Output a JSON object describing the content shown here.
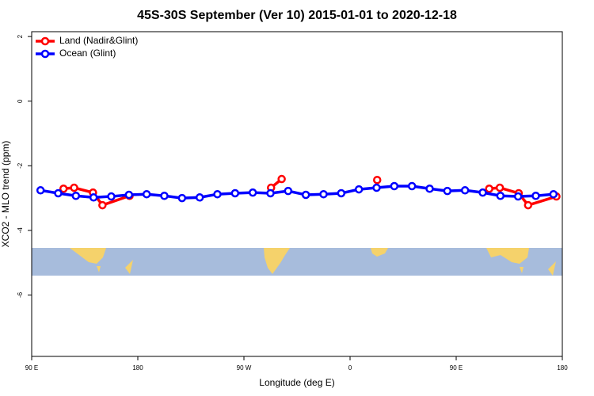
{
  "chart_data": {
    "type": "line",
    "title": "45S-30S September (Ver 10)   2015-01-01 to 2020-12-18",
    "xlabel": "Longitude (deg E)",
    "ylabel": "XCO2 - MLO trend (ppm)",
    "xlim": [
      90,
      540
    ],
    "ylim": [
      -7.9,
      2.15
    ],
    "xticks": [
      {
        "value": 90,
        "label": "90 E"
      },
      {
        "value": 180,
        "label": "180"
      },
      {
        "value": 270,
        "label": "90 W"
      },
      {
        "value": 360,
        "label": "0"
      },
      {
        "value": 450,
        "label": "90 E"
      },
      {
        "value": 540,
        "label": "180"
      }
    ],
    "yticks": [
      2,
      0,
      -2,
      -4,
      -6
    ],
    "grid": false,
    "legend": "top-left",
    "series": [
      {
        "name": "Land (Nadir&Glint)",
        "color": "#ff0000",
        "x": [
          117,
          126,
          142,
          150,
          173,
          null,
          293,
          302,
          null,
          383,
          null,
          478,
          487,
          503,
          511,
          535
        ],
        "values": [
          -2.71,
          -2.68,
          -2.83,
          -3.22,
          -2.93,
          null,
          -2.68,
          -2.41,
          null,
          -2.44,
          null,
          -2.71,
          -2.68,
          -2.85,
          -3.22,
          -2.95
        ]
      },
      {
        "name": "Ocean (Glint)",
        "color": "#0000ff",
        "x": [
          97.5,
          112.5,
          127.5,
          142.5,
          157.5,
          172.5,
          187.5,
          202.5,
          217.5,
          232.5,
          247.5,
          262.5,
          277.5,
          292.5,
          307.5,
          322.5,
          337.5,
          352.5,
          367.5,
          382.5,
          397.5,
          412.5,
          427.5,
          442.5,
          457.5,
          472.5,
          487.5,
          502.5,
          517.5,
          532.5
        ],
        "values": [
          -2.76,
          -2.85,
          -2.93,
          -2.98,
          -2.95,
          -2.9,
          -2.88,
          -2.93,
          -3.0,
          -2.98,
          -2.88,
          -2.85,
          -2.83,
          -2.85,
          -2.78,
          -2.9,
          -2.88,
          -2.85,
          -2.73,
          -2.68,
          -2.63,
          -2.63,
          -2.71,
          -2.78,
          -2.76,
          -2.83,
          -2.93,
          -2.95,
          -2.93,
          -2.88
        ]
      }
    ]
  }
}
